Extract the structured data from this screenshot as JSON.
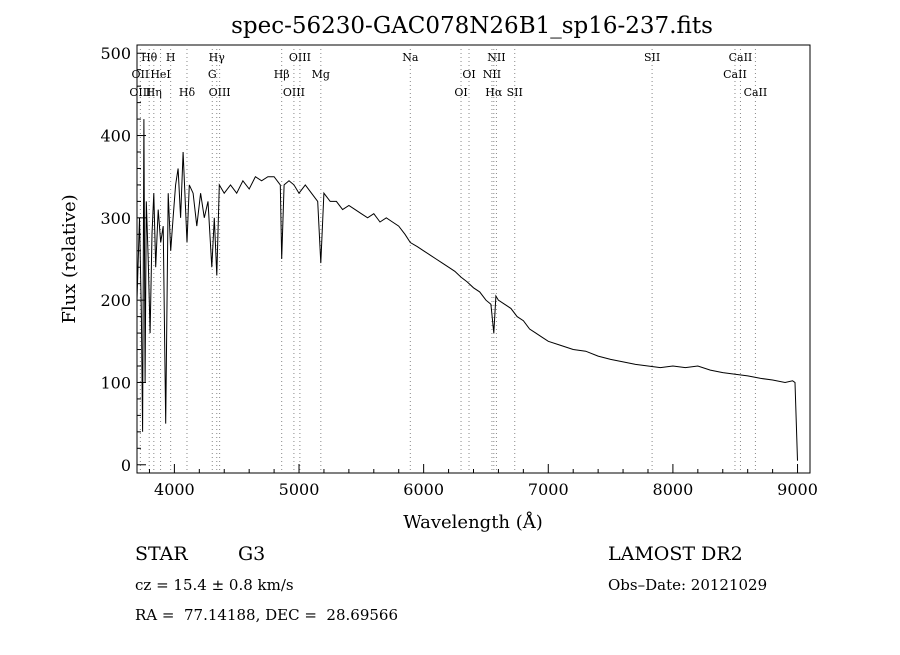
{
  "chart_data": {
    "type": "line",
    "title": "spec-56230-GAC078N26B1_sp16-237.fits",
    "xlabel": "Wavelength (Å)",
    "ylabel": "Flux (relative)",
    "xlim": [
      3700,
      9100
    ],
    "ylim": [
      -10,
      510
    ],
    "xticks": [
      "4000",
      "5000",
      "6000",
      "7000",
      "8000",
      "9000"
    ],
    "yticks": [
      "0",
      "100",
      "200",
      "300",
      "400",
      "500"
    ],
    "grid": false,
    "series": [
      {
        "x": [
          3700,
          3720,
          3735,
          3745,
          3755,
          3765,
          3775,
          3790,
          3805,
          3820,
          3835,
          3850,
          3870,
          3890,
          3910,
          3930,
          3950,
          3970,
          3990,
          4010,
          4030,
          4050,
          4070,
          4090,
          4101,
          4120,
          4150,
          4180,
          4210,
          4240,
          4270,
          4300,
          4320,
          4340,
          4360,
          4400,
          4450,
          4500,
          4550,
          4600,
          4650,
          4700,
          4750,
          4800,
          4850,
          4861,
          4880,
          4920,
          4960,
          5000,
          5050,
          5100,
          5150,
          5175,
          5200,
          5250,
          5300,
          5350,
          5400,
          5450,
          5500,
          5550,
          5600,
          5650,
          5700,
          5750,
          5800,
          5850,
          5893,
          5950,
          6000,
          6050,
          6100,
          6150,
          6200,
          6250,
          6300,
          6350,
          6400,
          6450,
          6500,
          6540,
          6563,
          6580,
          6600,
          6650,
          6700,
          6750,
          6800,
          6850,
          6900,
          6950,
          7000,
          7100,
          7200,
          7300,
          7400,
          7500,
          7600,
          7700,
          7800,
          7900,
          8000,
          8100,
          8200,
          8300,
          8400,
          8500,
          8600,
          8700,
          8800,
          8900,
          8960,
          8980,
          9000
        ],
        "y": [
          200,
          300,
          180,
          40,
          420,
          100,
          320,
          250,
          160,
          280,
          330,
          240,
          310,
          270,
          290,
          50,
          330,
          260,
          300,
          340,
          360,
          300,
          380,
          310,
          270,
          340,
          330,
          290,
          330,
          300,
          320,
          240,
          300,
          230,
          340,
          330,
          340,
          330,
          345,
          335,
          350,
          345,
          350,
          350,
          340,
          250,
          340,
          345,
          340,
          330,
          340,
          330,
          320,
          245,
          330,
          320,
          320,
          310,
          315,
          310,
          305,
          300,
          305,
          295,
          300,
          295,
          290,
          280,
          270,
          265,
          260,
          255,
          250,
          245,
          240,
          235,
          228,
          222,
          215,
          210,
          200,
          195,
          160,
          205,
          200,
          195,
          190,
          180,
          175,
          165,
          160,
          155,
          150,
          145,
          140,
          138,
          132,
          128,
          125,
          122,
          120,
          118,
          120,
          118,
          120,
          115,
          112,
          110,
          108,
          105,
          103,
          100,
          102,
          100,
          5
        ]
      }
    ],
    "line_markers": [
      {
        "label": "Hθ",
        "x": 3798,
        "row": 0
      },
      {
        "label": "OII",
        "x": 3727,
        "row": 1
      },
      {
        "label": "OIII",
        "x": 3727,
        "row": 2
      },
      {
        "label": "H",
        "x": 3970,
        "row": 0
      },
      {
        "label": "HeI",
        "x": 3889,
        "row": 1
      },
      {
        "label": "Hη",
        "x": 3835,
        "row": 2
      },
      {
        "label": "Hδ",
        "x": 4101,
        "row": 2
      },
      {
        "label": "Hγ",
        "x": 4340,
        "row": 0
      },
      {
        "label": "G",
        "x": 4304,
        "row": 1
      },
      {
        "label": "OIII",
        "x": 4363,
        "row": 2
      },
      {
        "label": "OIII",
        "x": 5007,
        "row": 0
      },
      {
        "label": "Hβ",
        "x": 4861,
        "row": 1
      },
      {
        "label": "Mg",
        "x": 5175,
        "row": 1
      },
      {
        "label": "OIII",
        "x": 4959,
        "row": 2
      },
      {
        "label": "Na",
        "x": 5893,
        "row": 0
      },
      {
        "label": "NII",
        "x": 6584,
        "row": 0
      },
      {
        "label": "OI",
        "x": 6364,
        "row": 1
      },
      {
        "label": "NII",
        "x": 6548,
        "row": 1
      },
      {
        "label": "OI",
        "x": 6300,
        "row": 2
      },
      {
        "label": "Hα",
        "x": 6563,
        "row": 2
      },
      {
        "label": "SII",
        "x": 6731,
        "row": 2
      },
      {
        "label": "SII",
        "x": 7833,
        "row": 0
      },
      {
        "label": "CaII",
        "x": 8542,
        "row": 0
      },
      {
        "label": "CaII",
        "x": 8498,
        "row": 1
      },
      {
        "label": "CaII",
        "x": 8662,
        "row": 2
      }
    ]
  },
  "footer": {
    "object_class": "STAR",
    "subclass": "G3",
    "survey": "LAMOST DR2",
    "cz": "cz = 15.4 ± 0.8 km/s",
    "obs_date": "Obs–Date: 20121029",
    "coords": "RA =  77.14188, DEC =  28.69566"
  },
  "colors": {
    "line": "#000000",
    "marker_line": "#888888",
    "background": "#ffffff"
  }
}
